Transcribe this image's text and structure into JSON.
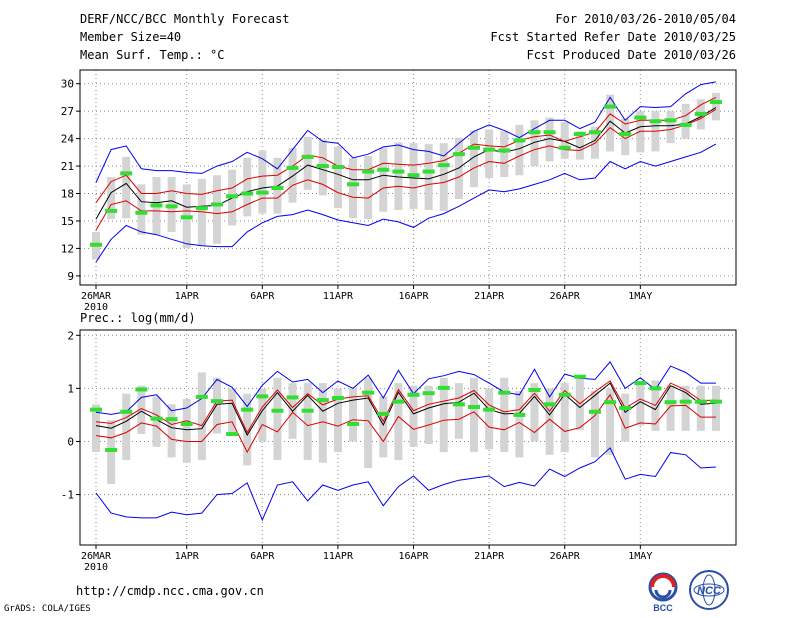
{
  "header": {
    "title": "DERF/NCC/BCC Monthly Forecast",
    "member_size": "Member Size=40",
    "variable": "Mean Surf. Temp.: °C",
    "period": "For 2010/03/26-2010/05/04",
    "started": "Fcst Started Refer Date 2010/03/25",
    "produced": "Fcst Produced Date 2010/03/26"
  },
  "footer": {
    "url": "http://cmdp.ncc.cma.gov.cn",
    "grads": "GrADS: COLA/IGES",
    "logo_bcc": "BCC",
    "logo_ncc": "NCC"
  },
  "colors": {
    "envelope": "#0000ee",
    "quartile": "#dd0000",
    "mean": "#000000",
    "median": "#33dd33",
    "box": "#d4d4d4"
  },
  "chart_data": [
    {
      "type": "line",
      "title": "Mean Surf. Temp.: °C",
      "xlabel": "",
      "ylabel": "",
      "x_tick_labels": [
        "26MAR",
        "1APR",
        "6APR",
        "11APR",
        "16APR",
        "21APR",
        "26APR",
        "1MAY"
      ],
      "x_tick_days": [
        1,
        7,
        12,
        17,
        22,
        27,
        32,
        37
      ],
      "year_label": "2010",
      "ylim": [
        8,
        31.5
      ],
      "yticks": [
        9,
        12,
        15,
        18,
        21,
        24,
        27,
        30
      ],
      "grid": true,
      "series": [
        {
          "name": "max",
          "values": [
            10.5,
            13.0,
            14.5,
            13.8,
            13.5,
            13.0,
            12.5,
            12.3,
            12.2,
            12.2,
            13.8,
            14.8,
            15.5,
            15.7,
            16.2,
            15.7,
            15.1,
            14.8,
            14.5,
            15.2,
            14.9,
            14.3,
            15.3,
            15.8,
            16.6,
            17.5,
            18.4,
            18.2,
            18.5,
            19.0,
            19.5,
            20.2,
            19.5,
            19.7,
            21.5,
            20.7,
            21.5,
            21.0,
            21.5,
            22.0,
            22.5,
            23.4
          ]
        },
        {
          "name": "lower quartile",
          "values": [
            14.0,
            16.8,
            17.2,
            16.1,
            16.1,
            16.0,
            16.1,
            16.0,
            15.8,
            16.0,
            16.8,
            17.5,
            17.5,
            18.9,
            19.5,
            19.0,
            18.1,
            17.6,
            17.5,
            18.6,
            18.8,
            18.6,
            19.0,
            19.2,
            19.8,
            20.8,
            21.5,
            21.3,
            22.1,
            22.8,
            23.2,
            22.8,
            22.7,
            23.5,
            25.2,
            24.0,
            24.8,
            24.8,
            25.0,
            25.5,
            26.2,
            27.2
          ]
        },
        {
          "name": "mean",
          "values": [
            15.2,
            18.1,
            19.1,
            17.1,
            17.0,
            17.2,
            16.5,
            16.6,
            16.7,
            17.5,
            18.2,
            18.6,
            18.8,
            19.9,
            21.1,
            20.6,
            20.1,
            19.5,
            19.5,
            20.0,
            19.8,
            19.7,
            19.6,
            20.1,
            20.8,
            22.0,
            22.8,
            22.5,
            22.9,
            23.6,
            24.0,
            23.7,
            23.0,
            23.8,
            25.9,
            24.6,
            25.3,
            25.4,
            25.4,
            25.6,
            26.4,
            27.4
          ]
        },
        {
          "name": "upper quartile",
          "values": [
            17.0,
            19.3,
            20.0,
            18.0,
            18.0,
            18.3,
            18.0,
            17.9,
            18.3,
            18.6,
            19.6,
            19.9,
            20.0,
            21.0,
            22.2,
            21.9,
            21.0,
            20.6,
            20.6,
            21.3,
            21.2,
            21.1,
            21.3,
            21.6,
            22.4,
            23.4,
            23.2,
            23.1,
            23.8,
            24.2,
            24.4,
            23.7,
            24.2,
            24.7,
            26.7,
            25.6,
            26.0,
            26.0,
            26.0,
            26.5,
            27.7,
            28.5
          ]
        },
        {
          "name": "min",
          "values": [
            19.2,
            22.8,
            23.2,
            20.7,
            20.5,
            20.5,
            20.3,
            20.2,
            21.0,
            21.5,
            22.5,
            21.8,
            20.7,
            22.8,
            24.9,
            23.7,
            23.5,
            21.9,
            22.3,
            23.1,
            23.3,
            22.8,
            22.6,
            22.1,
            23.5,
            24.8,
            25.5,
            24.9,
            24.1,
            25.1,
            26.0,
            26.0,
            25.1,
            25.8,
            28.5,
            26.0,
            27.5,
            27.4,
            27.5,
            28.9,
            29.9,
            30.2
          ]
        }
      ],
      "median": [
        12.4,
        16.1,
        20.2,
        15.9,
        16.7,
        16.6,
        15.4,
        16.4,
        16.8,
        17.7,
        18.0,
        18.1,
        18.6,
        20.8,
        22.0,
        21.0,
        20.9,
        19.0,
        20.4,
        20.6,
        20.4,
        20.0,
        20.4,
        21.1,
        22.3,
        23.0,
        22.8,
        22.7,
        23.8,
        24.7,
        24.7,
        23.0,
        24.5,
        24.7,
        27.5,
        24.5,
        26.3,
        25.9,
        26.0,
        25.5,
        26.7,
        28.0
      ],
      "box_low": [
        10.8,
        15.2,
        15.3,
        13.5,
        13.5,
        13.8,
        12.0,
        12.3,
        12.5,
        14.5,
        15.5,
        15.8,
        15.8,
        17.0,
        18.4,
        17.8,
        16.4,
        15.3,
        15.2,
        16.0,
        16.2,
        16.3,
        16.2,
        16.1,
        17.4,
        18.7,
        19.7,
        19.8,
        20.0,
        21.0,
        21.5,
        21.8,
        21.7,
        21.8,
        22.6,
        22.2,
        22.5,
        22.6,
        23.5,
        24.0,
        25.0,
        26.0
      ],
      "box_high": [
        13.8,
        19.8,
        22.0,
        19.0,
        19.8,
        19.8,
        19.0,
        19.6,
        20.0,
        20.6,
        21.9,
        22.7,
        21.9,
        23.0,
        24.2,
        23.9,
        23.1,
        21.9,
        22.1,
        23.0,
        23.6,
        23.5,
        23.4,
        23.5,
        24.1,
        24.9,
        25.0,
        24.8,
        25.5,
        26.0,
        26.3,
        25.8,
        24.8,
        25.3,
        28.8,
        26.2,
        27.0,
        27.0,
        27.0,
        27.8,
        28.3,
        29.0
      ]
    },
    {
      "type": "line",
      "title": "Prec.: log(mm/d)",
      "xlabel": "",
      "ylabel": "",
      "x_tick_labels": [
        "26MAR",
        "1APR",
        "6APR",
        "11APR",
        "16APR",
        "21APR",
        "26APR",
        "1MAY"
      ],
      "x_tick_days": [
        1,
        7,
        12,
        17,
        22,
        27,
        32,
        37
      ],
      "year_label": "2010",
      "ylim": [
        -1.95,
        2.1
      ],
      "yticks": [
        -1,
        0,
        1,
        2
      ],
      "grid": true,
      "series": [
        {
          "name": "min",
          "values": [
            -0.97,
            -1.35,
            -1.42,
            -1.44,
            -1.44,
            -1.33,
            -1.38,
            -1.35,
            -1.0,
            -0.98,
            -0.78,
            -1.48,
            -0.82,
            -0.76,
            -1.12,
            -0.82,
            -0.92,
            -0.82,
            -0.76,
            -1.21,
            -0.85,
            -0.65,
            -0.92,
            -0.81,
            -0.73,
            -0.69,
            -0.65,
            -0.85,
            -0.77,
            -0.84,
            -0.52,
            -0.66,
            -0.5,
            -0.38,
            -0.12,
            -0.71,
            -0.62,
            -0.66,
            -0.21,
            -0.25,
            -0.5,
            -0.48
          ]
        },
        {
          "name": "lower quartile",
          "values": [
            0.11,
            0.07,
            0.17,
            0.35,
            0.29,
            0.04,
            0.0,
            0.0,
            0.32,
            0.37,
            -0.2,
            0.32,
            0.18,
            0.55,
            0.3,
            0.37,
            0.29,
            0.41,
            0.39,
            0.0,
            0.47,
            0.23,
            0.31,
            0.4,
            0.42,
            0.56,
            0.27,
            0.22,
            0.36,
            0.17,
            0.42,
            0.19,
            0.26,
            0.49,
            0.88,
            0.25,
            0.35,
            0.33,
            0.67,
            0.68,
            0.46,
            0.46
          ]
        },
        {
          "name": "mean",
          "values": [
            0.3,
            0.25,
            0.38,
            0.57,
            0.41,
            0.26,
            0.22,
            0.24,
            0.7,
            0.72,
            0.12,
            0.58,
            0.92,
            0.57,
            0.87,
            0.57,
            0.72,
            0.78,
            0.82,
            0.31,
            0.93,
            0.52,
            0.63,
            0.71,
            0.74,
            0.91,
            0.6,
            0.52,
            0.53,
            0.85,
            0.5,
            0.89,
            0.64,
            0.87,
            1.1,
            0.55,
            0.75,
            0.6,
            1.05,
            0.92,
            0.7,
            0.72
          ]
        },
        {
          "name": "upper quartile",
          "values": [
            0.37,
            0.34,
            0.45,
            0.62,
            0.5,
            0.32,
            0.39,
            0.3,
            0.76,
            0.78,
            0.17,
            0.65,
            0.97,
            0.64,
            0.9,
            0.69,
            0.8,
            0.84,
            0.86,
            0.38,
            0.98,
            0.58,
            0.7,
            0.76,
            0.82,
            0.96,
            0.69,
            0.56,
            0.6,
            0.91,
            0.57,
            0.96,
            0.71,
            0.94,
            1.14,
            0.63,
            0.8,
            0.68,
            1.1,
            0.97,
            0.77,
            0.78
          ]
        },
        {
          "name": "max",
          "values": [
            0.55,
            0.51,
            0.56,
            0.83,
            0.88,
            0.58,
            0.63,
            0.81,
            1.17,
            1.02,
            0.66,
            1.06,
            1.32,
            1.12,
            1.17,
            0.92,
            1.14,
            1.0,
            1.25,
            0.82,
            1.34,
            0.9,
            1.18,
            1.24,
            1.32,
            1.26,
            1.1,
            0.93,
            0.88,
            1.36,
            0.84,
            1.27,
            1.19,
            1.17,
            1.5,
            1.0,
            1.2,
            0.98,
            1.42,
            1.3,
            1.1,
            1.1
          ]
        }
      ],
      "median": [
        0.6,
        -0.16,
        0.56,
        0.98,
        0.43,
        0.42,
        0.33,
        0.84,
        0.76,
        0.14,
        0.6,
        0.85,
        0.58,
        0.83,
        0.58,
        0.78,
        0.82,
        0.33,
        0.92,
        0.52,
        0.75,
        0.88,
        0.91,
        1.01,
        0.7,
        0.65,
        0.6,
        0.92,
        0.5,
        0.97,
        0.7,
        0.88,
        1.22,
        0.56,
        0.74,
        0.63,
        1.1,
        1.0,
        0.74,
        0.75,
        0.75,
        0.75
      ],
      "box_low": [
        -0.2,
        -0.8,
        -0.35,
        0.14,
        -0.1,
        -0.3,
        -0.4,
        -0.35,
        0.15,
        0.12,
        -0.45,
        0.0,
        -0.35,
        0.05,
        -0.35,
        -0.4,
        -0.2,
        0.0,
        -0.5,
        -0.3,
        -0.35,
        -0.1,
        -0.05,
        -0.2,
        0.05,
        -0.2,
        -0.15,
        -0.2,
        -0.3,
        0.0,
        -0.25,
        -0.2,
        0.22,
        -0.3,
        -0.25,
        0.0,
        0.3,
        0.2,
        0.2,
        0.2,
        0.2,
        0.2
      ],
      "box_high": [
        0.7,
        0.4,
        0.9,
        1.05,
        0.85,
        0.7,
        0.8,
        1.3,
        1.2,
        1.0,
        0.9,
        1.0,
        1.2,
        1.1,
        1.1,
        1.1,
        1.0,
        1.0,
        1.2,
        0.85,
        1.1,
        1.05,
        1.05,
        1.2,
        1.1,
        1.2,
        1.0,
        1.2,
        0.95,
        1.1,
        1.0,
        1.1,
        1.25,
        0.95,
        1.0,
        0.9,
        1.1,
        1.15,
        1.05,
        1.05,
        1.05,
        1.05
      ]
    }
  ]
}
